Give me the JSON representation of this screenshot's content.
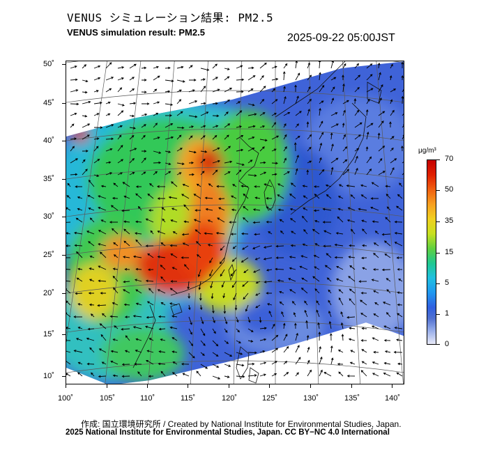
{
  "header": {
    "title_jp": "VENUS シミュレーション結果: PM2.5",
    "title_en": "VENUS simulation result: PM2.5",
    "timestamp": "2025-09-22 05:00JST"
  },
  "map": {
    "projection": "Lambert conformal",
    "field": "PM2.5 concentration",
    "overlay": "wind vectors (arrows)",
    "lat_labels": [
      "50˚",
      "45˚",
      "40˚",
      "35˚",
      "30˚",
      "25˚",
      "20˚",
      "15˚",
      "10˚"
    ],
    "lon_labels": [
      "100˚",
      "105˚",
      "110˚",
      "115˚",
      "120˚",
      "125˚",
      "130˚",
      "135˚",
      "140˚"
    ],
    "lat_range": [
      9,
      51
    ],
    "lon_range": [
      100,
      141
    ],
    "high_concentration_regions": [
      "South China (~22-27N, 108-116E)",
      "North China Plain (~34-38N, 115-119E)",
      "Sichuan Basin (~29-31N, 104-107E)"
    ],
    "feature": "cyclonic circulation (typhoon) near 19N 124E"
  },
  "colorbar": {
    "unit": "μg/m³",
    "ticks": [
      "70",
      "50",
      "35",
      "15",
      "5",
      "1",
      "0"
    ],
    "range": [
      0,
      70
    ]
  },
  "footer": {
    "credit_line1": "作成: 国立環境研究所 / Created by National Institute for Environmental Studies, Japan.",
    "credit_line2": "2025 National Institute for Environmental Studies, Japan. CC BY−NC 4.0 International"
  }
}
